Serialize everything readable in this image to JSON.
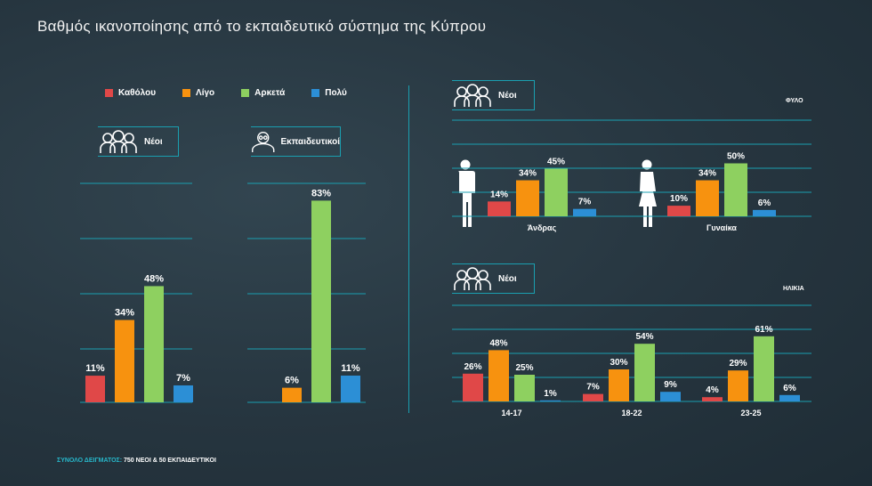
{
  "title": "Βαθμός ικανοποίησης από το εκπαιδευτικό σύστημα της Κύπρου",
  "legend": [
    {
      "label": "Καθόλου",
      "color": "#e04848"
    },
    {
      "label": "Λίγο",
      "color": "#f7920f"
    },
    {
      "label": "Αρκετά",
      "color": "#8ed060"
    },
    {
      "label": "Πολύ",
      "color": "#2c8fd6"
    }
  ],
  "tags": {
    "neoi_left": "Νέοι",
    "ekpaideftikoi": "Εκπαιδευτικοί",
    "neoi_gender": "Νέοι",
    "neoi_age": "Νέοι"
  },
  "side_labels": {
    "gender": "ΦΥΛΟ",
    "age": "ΗΛΙΚΙΑ"
  },
  "footnote": {
    "key": "ΣΥΝΟΛΟ ΔΕΙΓΜΑΤΟΣ:",
    "value": " 750 ΝΕΟΙ & 50 ΕΚΠΑΙΔΕΥΤΙΚΟΙ"
  },
  "icons": [
    "group-of-people-icon",
    "teacher-icon",
    "male-silhouette-icon",
    "female-silhouette-icon"
  ],
  "chart_data": [
    {
      "type": "bar",
      "name": "Νέοι",
      "categories": [
        "Καθόλου",
        "Λίγο",
        "Αρκετά",
        "Πολύ"
      ],
      "values": [
        11,
        34,
        48,
        7
      ],
      "labels": [
        "11%",
        "34%",
        "48%",
        "7%"
      ]
    },
    {
      "type": "bar",
      "name": "Εκπαιδευτικοί",
      "categories": [
        "Καθόλου",
        "Λίγο",
        "Αρκετά",
        "Πολύ"
      ],
      "values": [
        0,
        6,
        83,
        11
      ],
      "labels": [
        "",
        "6%",
        "83%",
        "11%"
      ]
    },
    {
      "type": "bar",
      "name": "ΦΥΛΟ",
      "categories": [
        "Άνδρας",
        "Γυναίκα"
      ],
      "series": [
        {
          "name": "Καθόλου",
          "values": [
            14,
            10
          ],
          "labels": [
            "14%",
            "10%"
          ]
        },
        {
          "name": "Λίγο",
          "values": [
            34,
            34
          ],
          "labels": [
            "34%",
            "34%"
          ]
        },
        {
          "name": "Αρκετά",
          "values": [
            45,
            50
          ],
          "labels": [
            "45%",
            "50%"
          ]
        },
        {
          "name": "Πολύ",
          "values": [
            7,
            6
          ],
          "labels": [
            "7%",
            "6%"
          ]
        }
      ]
    },
    {
      "type": "bar",
      "name": "ΗΛΙΚΙΑ",
      "categories": [
        "14-17",
        "18-22",
        "23-25"
      ],
      "series": [
        {
          "name": "Καθόλου",
          "values": [
            26,
            7,
            4
          ],
          "labels": [
            "26%",
            "7%",
            "4%"
          ]
        },
        {
          "name": "Λίγο",
          "values": [
            48,
            30,
            29
          ],
          "labels": [
            "48%",
            "30%",
            "29%"
          ]
        },
        {
          "name": "Αρκετά",
          "values": [
            25,
            54,
            61
          ],
          "labels": [
            "25%",
            "54%",
            "61%"
          ]
        },
        {
          "name": "Πολύ",
          "values": [
            1,
            9,
            6
          ],
          "labels": [
            "1%",
            "9%",
            "6%"
          ]
        }
      ]
    }
  ]
}
